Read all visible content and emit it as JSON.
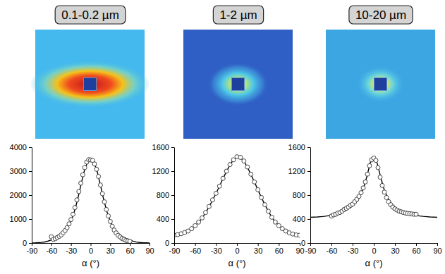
{
  "chart_data": [
    {
      "type": "scatter",
      "title": "0.1-0.2 µm",
      "x_label": "α (°)",
      "xlim": [
        -90,
        90
      ],
      "xticks": [
        -90,
        -60,
        -30,
        0,
        30,
        60,
        90
      ],
      "ylim": [
        0,
        4000
      ],
      "yticks": [
        0,
        1000,
        2000,
        3000,
        4000
      ],
      "grid": false,
      "series": [
        {
          "type": "scatter",
          "marker": "open-circle",
          "color": "#333333",
          "x": [
            -60,
            -57,
            -54,
            -51,
            -48,
            -45,
            -42,
            -39,
            -36,
            -33,
            -30,
            -27,
            -24,
            -21,
            -18,
            -15,
            -12,
            -9,
            -6,
            -3,
            0,
            3,
            6,
            9,
            12,
            15,
            18,
            21,
            24,
            27,
            30,
            33,
            36,
            39,
            42,
            45,
            48,
            51,
            54,
            57,
            60
          ],
          "values": [
            260,
            150,
            180,
            230,
            280,
            340,
            430,
            520,
            640,
            800,
            980,
            1200,
            1480,
            1800,
            2150,
            2500,
            2850,
            3150,
            3380,
            3480,
            3470,
            3450,
            3300,
            3080,
            2780,
            2420,
            2060,
            1720,
            1400,
            1130,
            900,
            700,
            540,
            420,
            320,
            250,
            190,
            150,
            110,
            90,
            70
          ]
        },
        {
          "type": "line",
          "line_style": "solid",
          "color": "#000000",
          "x": [
            -90,
            -85,
            -80,
            -75,
            -70,
            -65,
            -60,
            -55,
            -50,
            -45,
            -40,
            -35,
            -30,
            -25,
            -20,
            -15,
            -10,
            -5,
            0,
            5,
            10,
            15,
            20,
            25,
            30,
            35,
            40,
            45,
            50,
            55,
            60,
            65,
            70,
            75,
            80,
            85,
            90
          ],
          "values": [
            5,
            8,
            15,
            25,
            45,
            80,
            130,
            190,
            260,
            350,
            470,
            650,
            920,
            1300,
            1800,
            2400,
            2980,
            3360,
            3470,
            3380,
            3000,
            2420,
            1810,
            1300,
            910,
            640,
            460,
            340,
            250,
            180,
            120,
            75,
            42,
            24,
            14,
            8,
            5
          ]
        }
      ]
    },
    {
      "type": "scatter",
      "title": "1-2 µm",
      "x_label": "α (°)",
      "xlim": [
        -90,
        90
      ],
      "xticks": [
        -90,
        -60,
        -30,
        0,
        30,
        60,
        90
      ],
      "ylim": [
        0,
        1600
      ],
      "yticks": [
        0,
        400,
        800,
        1200,
        1600
      ],
      "grid": false,
      "series": [
        {
          "type": "scatter",
          "marker": "open-circle",
          "color": "#333333",
          "x": [
            -90,
            -85,
            -80,
            -75,
            -70,
            -65,
            -60,
            -55,
            -50,
            -45,
            -40,
            -35,
            -30,
            -25,
            -20,
            -15,
            -10,
            -5,
            0,
            5,
            10,
            15,
            20,
            25,
            30,
            35,
            40,
            45,
            50,
            55,
            60,
            65,
            70,
            75,
            80,
            85,
            90
          ],
          "values": [
            130,
            140,
            155,
            175,
            200,
            240,
            290,
            350,
            420,
            510,
            610,
            720,
            830,
            950,
            1080,
            1200,
            1310,
            1390,
            1440,
            1430,
            1370,
            1270,
            1150,
            1020,
            890,
            760,
            640,
            530,
            430,
            350,
            290,
            240,
            200,
            170,
            150,
            135,
            130
          ]
        },
        {
          "type": "line",
          "line_style": "solid",
          "color": "#000000",
          "x": [
            -90,
            -85,
            -80,
            -75,
            -70,
            -65,
            -60,
            -55,
            -50,
            -45,
            -40,
            -35,
            -30,
            -25,
            -20,
            -15,
            -10,
            -5,
            0,
            5,
            10,
            15,
            20,
            25,
            30,
            35,
            40,
            45,
            50,
            55,
            60,
            65,
            70,
            75,
            80,
            85,
            90
          ],
          "values": [
            128,
            138,
            152,
            172,
            200,
            238,
            286,
            346,
            418,
            505,
            605,
            715,
            830,
            950,
            1075,
            1195,
            1305,
            1390,
            1435,
            1425,
            1365,
            1265,
            1145,
            1020,
            890,
            760,
            640,
            530,
            432,
            352,
            290,
            240,
            200,
            172,
            152,
            138,
            128
          ]
        }
      ]
    },
    {
      "type": "scatter",
      "title": "10-20 µm",
      "x_label": "α (°)",
      "xlim": [
        -90,
        90
      ],
      "xticks": [
        -90,
        -60,
        -30,
        0,
        30,
        60,
        90
      ],
      "ylim": [
        0,
        1600
      ],
      "yticks": [
        0,
        400,
        800,
        1200,
        1600
      ],
      "grid": false,
      "series": [
        {
          "type": "scatter",
          "marker": "open-circle",
          "color": "#333333",
          "x": [
            -60,
            -57,
            -54,
            -51,
            -48,
            -45,
            -42,
            -39,
            -36,
            -33,
            -30,
            -27,
            -24,
            -21,
            -18,
            -15,
            -12,
            -9,
            -6,
            -3,
            0,
            3,
            6,
            9,
            12,
            15,
            18,
            21,
            24,
            27,
            30,
            33,
            36,
            39,
            42,
            45,
            48,
            51,
            54,
            57,
            60
          ],
          "values": [
            450,
            470,
            480,
            500,
            510,
            530,
            560,
            580,
            600,
            630,
            650,
            690,
            730,
            780,
            840,
            920,
            1020,
            1150,
            1290,
            1390,
            1420,
            1380,
            1260,
            1100,
            960,
            850,
            760,
            690,
            640,
            600,
            570,
            550,
            530,
            520,
            510,
            500,
            495,
            490,
            485,
            480,
            480
          ]
        },
        {
          "type": "line",
          "line_style": "solid",
          "color": "#000000",
          "x": [
            -90,
            -85,
            -80,
            -75,
            -70,
            -65,
            -60,
            -55,
            -50,
            -45,
            -40,
            -35,
            -30,
            -25,
            -20,
            -15,
            -10,
            -5,
            0,
            5,
            10,
            15,
            20,
            25,
            30,
            35,
            40,
            45,
            50,
            55,
            60,
            65,
            70,
            75,
            80,
            85,
            90
          ],
          "values": [
            430,
            432,
            435,
            440,
            445,
            455,
            465,
            480,
            495,
            515,
            540,
            575,
            620,
            680,
            770,
            900,
            1100,
            1340,
            1420,
            1330,
            1090,
            880,
            750,
            660,
            605,
            565,
            535,
            510,
            490,
            475,
            462,
            452,
            445,
            440,
            435,
            432,
            430
          ]
        }
      ]
    }
  ]
}
